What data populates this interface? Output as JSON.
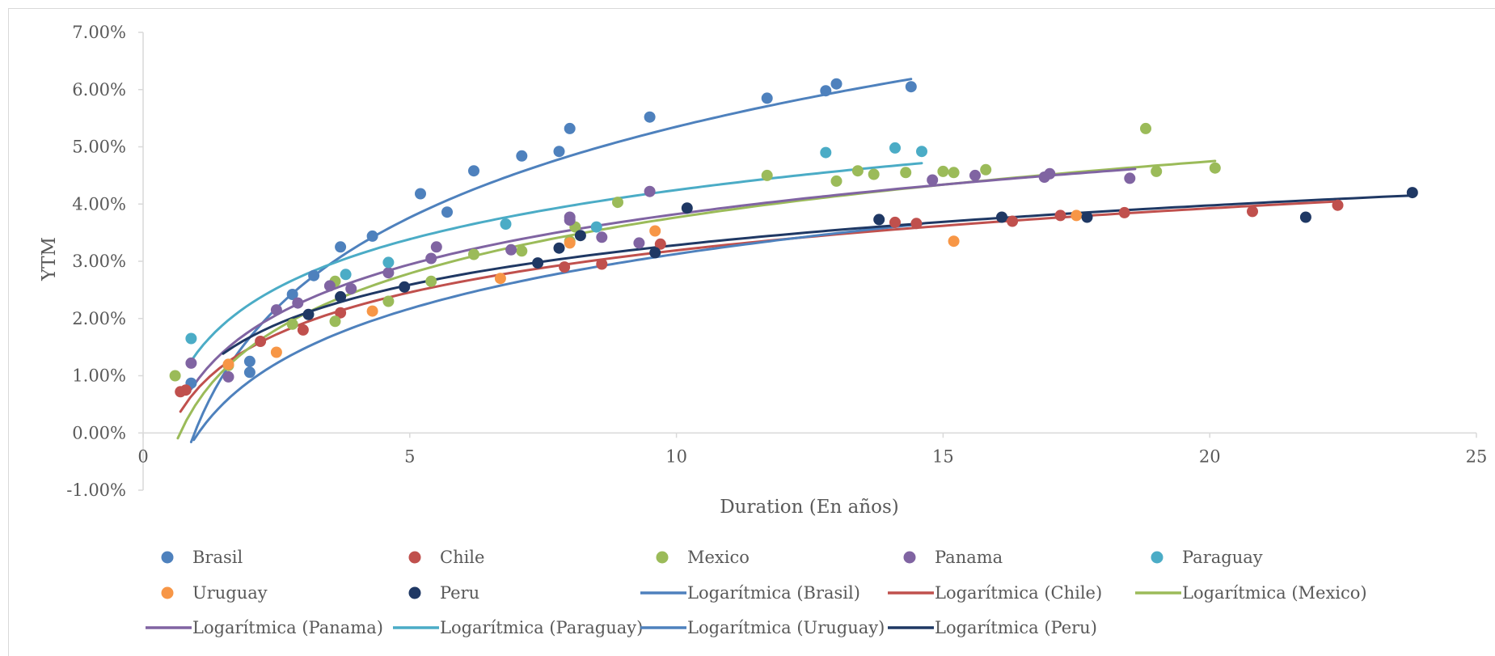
{
  "chart_data": {
    "type": "scatter",
    "title": "",
    "xlabel": "Duration (En años)",
    "ylabel": "YTM",
    "xlim": [
      0,
      25
    ],
    "ylim": [
      -1,
      7
    ],
    "x_ticks": [
      "0",
      "5",
      "10",
      "15",
      "20",
      "25"
    ],
    "y_ticks": [
      "-1.00%",
      "0.00%",
      "1.00%",
      "2.00%",
      "3.00%",
      "4.00%",
      "5.00%",
      "6.00%",
      "7.00%"
    ],
    "grid": false,
    "legend_position": "bottom",
    "series": [
      {
        "name": "Brasil",
        "color": "#4e81bd",
        "points": [
          [
            0.9,
            0.87
          ],
          [
            2.0,
            1.06
          ],
          [
            2.0,
            1.25
          ],
          [
            2.8,
            2.42
          ],
          [
            3.2,
            2.75
          ],
          [
            3.7,
            3.25
          ],
          [
            4.3,
            3.44
          ],
          [
            5.2,
            4.18
          ],
          [
            5.7,
            3.86
          ],
          [
            6.2,
            4.58
          ],
          [
            7.1,
            4.84
          ],
          [
            7.8,
            4.92
          ],
          [
            8.0,
            5.32
          ],
          [
            9.5,
            5.52
          ],
          [
            11.7,
            5.85
          ],
          [
            12.8,
            5.98
          ],
          [
            13.0,
            6.1
          ],
          [
            14.4,
            6.05
          ]
        ]
      },
      {
        "name": "Chile",
        "color": "#c0504d",
        "points": [
          [
            0.8,
            0.75
          ],
          [
            0.7,
            0.72
          ],
          [
            2.2,
            1.6
          ],
          [
            3.0,
            1.8
          ],
          [
            3.7,
            2.1
          ],
          [
            7.9,
            2.9
          ],
          [
            8.6,
            2.95
          ],
          [
            9.7,
            3.3
          ],
          [
            14.1,
            3.68
          ],
          [
            14.5,
            3.66
          ],
          [
            16.3,
            3.7
          ],
          [
            17.2,
            3.8
          ],
          [
            18.4,
            3.85
          ],
          [
            20.8,
            3.87
          ],
          [
            22.4,
            3.98
          ]
        ]
      },
      {
        "name": "Mexico",
        "color": "#9bbb59",
        "points": [
          [
            0.6,
            1.0
          ],
          [
            1.6,
            1.18
          ],
          [
            2.8,
            1.9
          ],
          [
            3.6,
            1.95
          ],
          [
            3.6,
            2.65
          ],
          [
            4.6,
            2.3
          ],
          [
            5.4,
            2.65
          ],
          [
            6.2,
            3.12
          ],
          [
            7.1,
            3.18
          ],
          [
            8.0,
            3.35
          ],
          [
            8.1,
            3.6
          ],
          [
            8.9,
            4.03
          ],
          [
            11.7,
            4.5
          ],
          [
            13.0,
            4.4
          ],
          [
            13.4,
            4.58
          ],
          [
            13.7,
            4.52
          ],
          [
            14.3,
            4.55
          ],
          [
            15.0,
            4.57
          ],
          [
            15.2,
            4.55
          ],
          [
            15.8,
            4.6
          ],
          [
            18.8,
            5.32
          ],
          [
            19.0,
            4.57
          ],
          [
            20.1,
            4.63
          ]
        ]
      },
      {
        "name": "Panama",
        "color": "#8064a2",
        "points": [
          [
            0.9,
            1.22
          ],
          [
            1.6,
            0.98
          ],
          [
            2.5,
            2.15
          ],
          [
            2.9,
            2.27
          ],
          [
            3.5,
            2.57
          ],
          [
            3.9,
            2.52
          ],
          [
            4.6,
            2.8
          ],
          [
            5.4,
            3.05
          ],
          [
            5.5,
            3.25
          ],
          [
            6.9,
            3.2
          ],
          [
            8.0,
            3.72
          ],
          [
            8.0,
            3.77
          ],
          [
            8.6,
            3.42
          ],
          [
            9.3,
            3.32
          ],
          [
            9.5,
            4.22
          ],
          [
            14.8,
            4.42
          ],
          [
            15.6,
            4.5
          ],
          [
            16.9,
            4.47
          ],
          [
            17.0,
            4.53
          ],
          [
            18.5,
            4.45
          ]
        ]
      },
      {
        "name": "Paraguay",
        "color": "#4bacc6",
        "points": [
          [
            0.9,
            1.65
          ],
          [
            3.8,
            2.77
          ],
          [
            4.6,
            2.98
          ],
          [
            6.8,
            3.65
          ],
          [
            8.5,
            3.6
          ],
          [
            12.8,
            4.9
          ],
          [
            14.1,
            4.98
          ],
          [
            14.6,
            4.92
          ]
        ]
      },
      {
        "name": "Uruguay",
        "color": "#f79646",
        "points": [
          [
            1.6,
            1.2
          ],
          [
            2.5,
            1.41
          ],
          [
            4.3,
            2.13
          ],
          [
            6.7,
            2.7
          ],
          [
            8.0,
            3.32
          ],
          [
            9.6,
            3.53
          ],
          [
            15.2,
            3.35
          ],
          [
            17.5,
            3.8
          ]
        ]
      },
      {
        "name": "Peru",
        "color": "#1f3864",
        "points": [
          [
            3.1,
            2.07
          ],
          [
            3.7,
            2.38
          ],
          [
            4.9,
            2.55
          ],
          [
            7.4,
            2.97
          ],
          [
            7.8,
            3.23
          ],
          [
            8.2,
            3.45
          ],
          [
            9.6,
            3.15
          ],
          [
            10.2,
            3.93
          ],
          [
            13.8,
            3.73
          ],
          [
            16.1,
            3.77
          ],
          [
            17.7,
            3.77
          ],
          [
            21.8,
            3.77
          ],
          [
            23.8,
            4.2
          ]
        ]
      }
    ],
    "trendlines": [
      {
        "name": "Logarítmica (Brasil)",
        "color": "#4e81bd",
        "x_range": [
          0.9,
          14.4
        ],
        "intercept": 0.082,
        "slope": 2.288
      },
      {
        "name": "Logarítmica (Chile)",
        "color": "#c0504d",
        "x_range": [
          0.7,
          22.4
        ],
        "intercept": 0.75,
        "slope": 1.06
      },
      {
        "name": "Logarítmica (Mexico)",
        "color": "#9bbb59",
        "x_range": [
          0.65,
          20.1
        ],
        "intercept": 0.515,
        "slope": 1.412
      },
      {
        "name": "Logarítmica (Panama)",
        "color": "#8064a2",
        "x_range": [
          0.9,
          18.6
        ],
        "intercept": 0.9,
        "slope": 1.27
      },
      {
        "name": "Logarítmica (Paraguay)",
        "color": "#4bacc6",
        "x_range": [
          0.9,
          14.6
        ],
        "intercept": 1.39,
        "slope": 1.24
      },
      {
        "name": "Logarítmica (Uruguay)",
        "color": "#4e81bd",
        "x_range": [
          0.95,
          14.6
        ],
        "intercept": -0.05,
        "slope": 1.38
      },
      {
        "name": "Logarítmica (Peru)",
        "color": "#1f3864",
        "x_range": [
          1.5,
          23.8
        ],
        "intercept": 0.98,
        "slope": 1.0
      }
    ],
    "legend_entries": [
      {
        "label": "Brasil",
        "kind": "marker",
        "color": "#4e81bd"
      },
      {
        "label": "Chile",
        "kind": "marker",
        "color": "#c0504d"
      },
      {
        "label": "Mexico",
        "kind": "marker",
        "color": "#9bbb59"
      },
      {
        "label": "Panama",
        "kind": "marker",
        "color": "#8064a2"
      },
      {
        "label": "Paraguay",
        "kind": "marker",
        "color": "#4bacc6"
      },
      {
        "label": "Uruguay",
        "kind": "marker",
        "color": "#f79646"
      },
      {
        "label": "Peru",
        "kind": "marker",
        "color": "#1f3864"
      },
      {
        "label": "Logarítmica (Brasil)",
        "kind": "line",
        "color": "#4e81bd"
      },
      {
        "label": "Logarítmica (Chile)",
        "kind": "line",
        "color": "#c0504d"
      },
      {
        "label": "Logarítmica (Mexico)",
        "kind": "line",
        "color": "#9bbb59"
      },
      {
        "label": "Logarítmica (Panama)",
        "kind": "line",
        "color": "#8064a2"
      },
      {
        "label": "Logarítmica (Paraguay)",
        "kind": "line",
        "color": "#4bacc6"
      },
      {
        "label": "Logarítmica (Uruguay)",
        "kind": "line",
        "color": "#4e81bd"
      },
      {
        "label": "Logarítmica (Peru)",
        "kind": "line",
        "color": "#1f3864"
      }
    ]
  }
}
